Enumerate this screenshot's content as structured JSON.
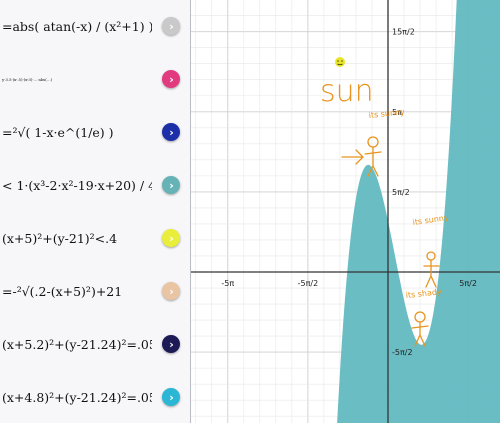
{
  "expressions": [
    {
      "text": "=abs( atan(-x) / (x²+1) )",
      "color": "#c9c9c9"
    },
    {
      "text": "y·3.5·(x-.5)·(x-3)·…·abs(…)",
      "color": "#e23a7e"
    },
    {
      "text": "=²√( 1-x·e^(1/e) )",
      "color": "#1c2fa8"
    },
    {
      "text": "< 1·(x³-2·x²-19·x+20) / 4",
      "color": "#66b3b7"
    },
    {
      "text": "(x+5)²+(y-21)²<.4",
      "color": "#e9ee3b"
    },
    {
      "text": "=-²√(.2-(x+5)²)+21",
      "color": "#e9c5a4"
    },
    {
      "text": "(x+5.2)²+(y-21.24)²=.05",
      "color": "#1d1a55"
    },
    {
      "text": "(x+4.8)²+(y-21.24)²=.05",
      "color": "#2ab6d4"
    }
  ],
  "axis": {
    "x_labels": [
      "-5π",
      "-5π/2",
      "5π/2"
    ],
    "y_labels": [
      "15π/2",
      "5π",
      "5π/2",
      "-5π/2"
    ]
  },
  "annotations": {
    "sun": "sun",
    "figure1": "its sunny",
    "figure2": "its sunny",
    "figure3": "its shady"
  },
  "colors": {
    "shade": "#63b9c1",
    "grid_minor": "#e8e8e8",
    "grid_major": "#cfcfcf",
    "axis": "#333333",
    "sketch": "#e8941e",
    "sun": "#e8e626"
  }
}
